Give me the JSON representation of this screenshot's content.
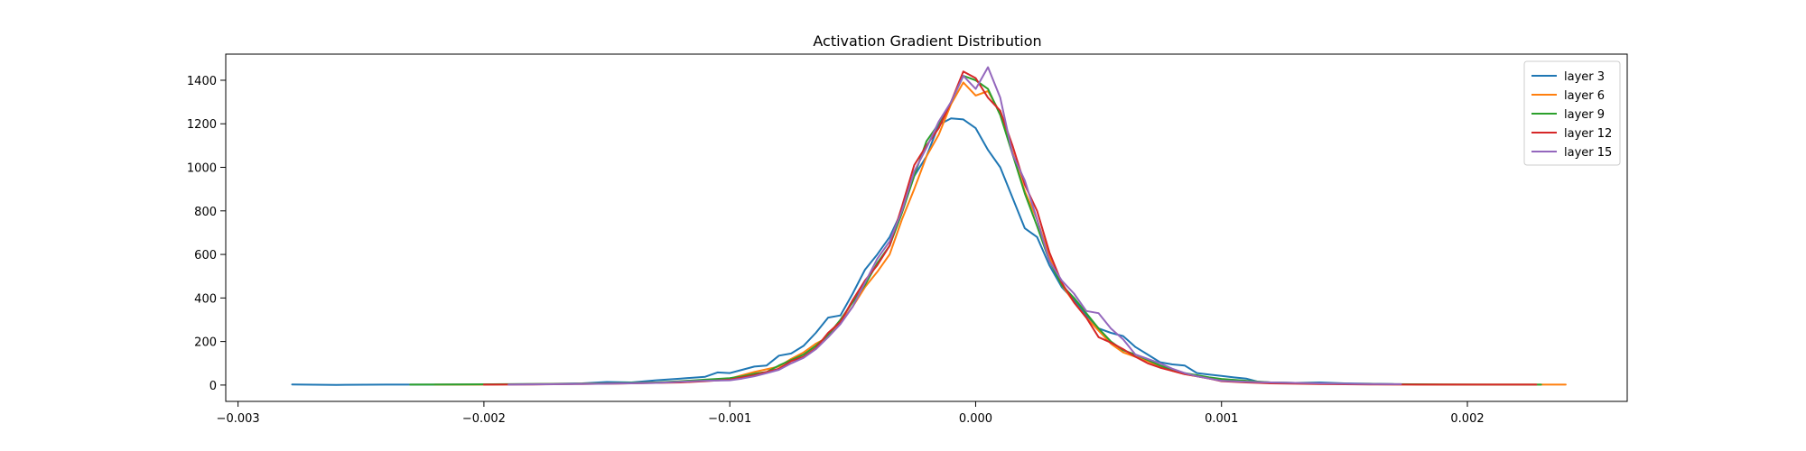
{
  "chart_data": {
    "type": "line",
    "title": "Activation Gradient Distribution",
    "xlabel": "",
    "ylabel": "",
    "xlim": [
      -0.00305,
      0.00265
    ],
    "ylim": [
      -75,
      1520
    ],
    "xticks": [
      -0.003,
      -0.002,
      -0.001,
      0.0,
      0.001,
      0.002
    ],
    "xtick_labels": [
      "−0.003",
      "−0.002",
      "−0.001",
      "0.000",
      "0.001",
      "0.002"
    ],
    "yticks": [
      0,
      200,
      400,
      600,
      800,
      1000,
      1200,
      1400
    ],
    "ytick_labels": [
      "0",
      "200",
      "400",
      "600",
      "800",
      "1000",
      "1200",
      "1400"
    ],
    "grid": false,
    "legend_position": "top-right",
    "series": [
      {
        "name": "layer 3",
        "color": "#1f77b4",
        "points": [
          [
            -0.00278,
            3
          ],
          [
            -0.0026,
            1
          ],
          [
            -0.0024,
            2
          ],
          [
            -0.0022,
            2
          ],
          [
            -0.002,
            3
          ],
          [
            -0.0018,
            5
          ],
          [
            -0.0016,
            8
          ],
          [
            -0.0015,
            14
          ],
          [
            -0.0014,
            12
          ],
          [
            -0.0013,
            22
          ],
          [
            -0.0012,
            30
          ],
          [
            -0.0011,
            38
          ],
          [
            -0.00105,
            58
          ],
          [
            -0.001,
            55
          ],
          [
            -0.00095,
            70
          ],
          [
            -0.0009,
            85
          ],
          [
            -0.00085,
            90
          ],
          [
            -0.0008,
            135
          ],
          [
            -0.00075,
            145
          ],
          [
            -0.0007,
            180
          ],
          [
            -0.00065,
            240
          ],
          [
            -0.0006,
            310
          ],
          [
            -0.00055,
            320
          ],
          [
            -0.0005,
            420
          ],
          [
            -0.00045,
            530
          ],
          [
            -0.0004,
            600
          ],
          [
            -0.00035,
            680
          ],
          [
            -0.0003,
            800
          ],
          [
            -0.00025,
            960
          ],
          [
            -0.0002,
            1050
          ],
          [
            -0.00015,
            1195
          ],
          [
            -0.0001,
            1225
          ],
          [
            -5e-05,
            1220
          ],
          [
            0.0,
            1180
          ],
          [
            5e-05,
            1080
          ],
          [
            0.0001,
            1000
          ],
          [
            0.00015,
            860
          ],
          [
            0.0002,
            720
          ],
          [
            0.00025,
            680
          ],
          [
            0.0003,
            550
          ],
          [
            0.00035,
            450
          ],
          [
            0.0004,
            390
          ],
          [
            0.00045,
            320
          ],
          [
            0.0005,
            260
          ],
          [
            0.00055,
            240
          ],
          [
            0.0006,
            225
          ],
          [
            0.00065,
            175
          ],
          [
            0.0007,
            140
          ],
          [
            0.00075,
            105
          ],
          [
            0.0008,
            95
          ],
          [
            0.00085,
            90
          ],
          [
            0.0009,
            55
          ],
          [
            0.00095,
            48
          ],
          [
            0.001,
            42
          ],
          [
            0.00105,
            35
          ],
          [
            0.0011,
            30
          ],
          [
            0.00115,
            15
          ],
          [
            0.0012,
            12
          ],
          [
            0.0013,
            10
          ],
          [
            0.0014,
            12
          ],
          [
            0.0015,
            8
          ],
          [
            0.0016,
            6
          ],
          [
            0.0017,
            4
          ]
        ]
      },
      {
        "name": "layer 6",
        "color": "#ff7f0e",
        "points": [
          [
            -0.0022,
            2
          ],
          [
            -0.002,
            2
          ],
          [
            -0.0018,
            4
          ],
          [
            -0.0016,
            6
          ],
          [
            -0.0014,
            8
          ],
          [
            -0.0012,
            15
          ],
          [
            -0.0011,
            22
          ],
          [
            -0.001,
            30
          ],
          [
            -0.00095,
            45
          ],
          [
            -0.0009,
            60
          ],
          [
            -0.0008,
            85
          ],
          [
            -0.00075,
            120
          ],
          [
            -0.0007,
            150
          ],
          [
            -0.00065,
            190
          ],
          [
            -0.0006,
            220
          ],
          [
            -0.00055,
            290
          ],
          [
            -0.0005,
            360
          ],
          [
            -0.00045,
            450
          ],
          [
            -0.0004,
            520
          ],
          [
            -0.00035,
            600
          ],
          [
            -0.0003,
            760
          ],
          [
            -0.00025,
            900
          ],
          [
            -0.0002,
            1050
          ],
          [
            -0.00015,
            1150
          ],
          [
            -0.0001,
            1290
          ],
          [
            -5e-05,
            1390
          ],
          [
            0.0,
            1330
          ],
          [
            5e-05,
            1350
          ],
          [
            0.0001,
            1250
          ],
          [
            0.00015,
            1070
          ],
          [
            0.0002,
            890
          ],
          [
            0.00025,
            760
          ],
          [
            0.0003,
            590
          ],
          [
            0.00035,
            460
          ],
          [
            0.0004,
            380
          ],
          [
            0.00045,
            310
          ],
          [
            0.0005,
            250
          ],
          [
            0.00055,
            190
          ],
          [
            0.0006,
            150
          ],
          [
            0.00065,
            130
          ],
          [
            0.0007,
            110
          ],
          [
            0.00075,
            85
          ],
          [
            0.0008,
            65
          ],
          [
            0.00085,
            50
          ],
          [
            0.0009,
            40
          ],
          [
            0.00095,
            30
          ],
          [
            0.001,
            25
          ],
          [
            0.0011,
            15
          ],
          [
            0.0012,
            10
          ],
          [
            0.0014,
            6
          ],
          [
            0.0016,
            4
          ],
          [
            0.0018,
            3
          ],
          [
            0.002,
            2
          ],
          [
            0.0022,
            2
          ],
          [
            0.0024,
            2
          ]
        ]
      },
      {
        "name": "layer 9",
        "color": "#2ca02c",
        "points": [
          [
            -0.0023,
            2
          ],
          [
            -0.0021,
            3
          ],
          [
            -0.0019,
            4
          ],
          [
            -0.0017,
            5
          ],
          [
            -0.0015,
            8
          ],
          [
            -0.0013,
            12
          ],
          [
            -0.0012,
            18
          ],
          [
            -0.0011,
            25
          ],
          [
            -0.001,
            32
          ],
          [
            -0.00095,
            40
          ],
          [
            -0.0009,
            52
          ],
          [
            -0.00085,
            60
          ],
          [
            -0.0008,
            90
          ],
          [
            -0.00075,
            115
          ],
          [
            -0.0007,
            140
          ],
          [
            -0.00065,
            180
          ],
          [
            -0.0006,
            230
          ],
          [
            -0.00055,
            300
          ],
          [
            -0.0005,
            380
          ],
          [
            -0.00045,
            460
          ],
          [
            -0.0004,
            560
          ],
          [
            -0.00035,
            640
          ],
          [
            -0.0003,
            790
          ],
          [
            -0.00025,
            960
          ],
          [
            -0.0002,
            1120
          ],
          [
            -0.00015,
            1200
          ],
          [
            -0.0001,
            1300
          ],
          [
            -5e-05,
            1420
          ],
          [
            0.0,
            1400
          ],
          [
            5e-05,
            1360
          ],
          [
            0.0001,
            1240
          ],
          [
            0.00015,
            1060
          ],
          [
            0.0002,
            880
          ],
          [
            0.00025,
            730
          ],
          [
            0.0003,
            570
          ],
          [
            0.00035,
            460
          ],
          [
            0.0004,
            400
          ],
          [
            0.00045,
            330
          ],
          [
            0.0005,
            260
          ],
          [
            0.00055,
            200
          ],
          [
            0.0006,
            160
          ],
          [
            0.00065,
            140
          ],
          [
            0.0007,
            115
          ],
          [
            0.00075,
            90
          ],
          [
            0.0008,
            70
          ],
          [
            0.00085,
            55
          ],
          [
            0.0009,
            45
          ],
          [
            0.00095,
            35
          ],
          [
            0.001,
            28
          ],
          [
            0.0011,
            20
          ],
          [
            0.0012,
            12
          ],
          [
            0.0013,
            10
          ],
          [
            0.0015,
            6
          ],
          [
            0.0017,
            4
          ],
          [
            0.0019,
            3
          ],
          [
            0.0021,
            2
          ],
          [
            0.0023,
            2
          ]
        ]
      },
      {
        "name": "layer 12",
        "color": "#d62728",
        "points": [
          [
            -0.002,
            2
          ],
          [
            -0.0018,
            3
          ],
          [
            -0.0016,
            5
          ],
          [
            -0.0014,
            8
          ],
          [
            -0.0012,
            12
          ],
          [
            -0.0011,
            18
          ],
          [
            -0.001,
            25
          ],
          [
            -0.00095,
            35
          ],
          [
            -0.0009,
            45
          ],
          [
            -0.00085,
            60
          ],
          [
            -0.0008,
            75
          ],
          [
            -0.00075,
            110
          ],
          [
            -0.0007,
            130
          ],
          [
            -0.00065,
            170
          ],
          [
            -0.0006,
            240
          ],
          [
            -0.00055,
            290
          ],
          [
            -0.0005,
            390
          ],
          [
            -0.00045,
            480
          ],
          [
            -0.0004,
            550
          ],
          [
            -0.00035,
            640
          ],
          [
            -0.0003,
            820
          ],
          [
            -0.00025,
            1010
          ],
          [
            -0.0002,
            1100
          ],
          [
            -0.00015,
            1180
          ],
          [
            -0.0001,
            1300
          ],
          [
            -5e-05,
            1440
          ],
          [
            0.0,
            1410
          ],
          [
            5e-05,
            1320
          ],
          [
            0.0001,
            1260
          ],
          [
            0.00015,
            1100
          ],
          [
            0.0002,
            920
          ],
          [
            0.00025,
            800
          ],
          [
            0.0003,
            610
          ],
          [
            0.00035,
            470
          ],
          [
            0.0004,
            380
          ],
          [
            0.00045,
            310
          ],
          [
            0.0005,
            220
          ],
          [
            0.00055,
            195
          ],
          [
            0.0006,
            165
          ],
          [
            0.00065,
            130
          ],
          [
            0.0007,
            100
          ],
          [
            0.00075,
            80
          ],
          [
            0.0008,
            65
          ],
          [
            0.00085,
            50
          ],
          [
            0.0009,
            40
          ],
          [
            0.00095,
            30
          ],
          [
            0.001,
            18
          ],
          [
            0.0011,
            12
          ],
          [
            0.0012,
            8
          ],
          [
            0.0014,
            5
          ],
          [
            0.0016,
            3
          ],
          [
            0.0018,
            2
          ],
          [
            0.002,
            2
          ],
          [
            0.0022,
            2
          ],
          [
            0.00228,
            2
          ]
        ]
      },
      {
        "name": "layer 15",
        "color": "#9467bd",
        "points": [
          [
            -0.0019,
            2
          ],
          [
            -0.0017,
            4
          ],
          [
            -0.0015,
            6
          ],
          [
            -0.0013,
            10
          ],
          [
            -0.0012,
            15
          ],
          [
            -0.0011,
            20
          ],
          [
            -0.001,
            22
          ],
          [
            -0.00095,
            30
          ],
          [
            -0.0009,
            40
          ],
          [
            -0.00085,
            55
          ],
          [
            -0.0008,
            70
          ],
          [
            -0.00075,
            100
          ],
          [
            -0.0007,
            125
          ],
          [
            -0.00065,
            165
          ],
          [
            -0.0006,
            220
          ],
          [
            -0.00055,
            280
          ],
          [
            -0.0005,
            360
          ],
          [
            -0.00045,
            470
          ],
          [
            -0.0004,
            580
          ],
          [
            -0.00035,
            660
          ],
          [
            -0.0003,
            800
          ],
          [
            -0.00025,
            980
          ],
          [
            -0.0002,
            1090
          ],
          [
            -0.00015,
            1210
          ],
          [
            -0.0001,
            1300
          ],
          [
            -5e-05,
            1420
          ],
          [
            0.0,
            1360
          ],
          [
            5e-05,
            1460
          ],
          [
            0.0001,
            1320
          ],
          [
            0.00015,
            1060
          ],
          [
            0.0002,
            940
          ],
          [
            0.00025,
            760
          ],
          [
            0.0003,
            570
          ],
          [
            0.00035,
            480
          ],
          [
            0.0004,
            420
          ],
          [
            0.00045,
            340
          ],
          [
            0.0005,
            330
          ],
          [
            0.00055,
            260
          ],
          [
            0.0006,
            210
          ],
          [
            0.00065,
            140
          ],
          [
            0.0007,
            120
          ],
          [
            0.00075,
            100
          ],
          [
            0.0008,
            75
          ],
          [
            0.00085,
            55
          ],
          [
            0.0009,
            40
          ],
          [
            0.00095,
            30
          ],
          [
            0.001,
            20
          ],
          [
            0.0011,
            15
          ],
          [
            0.0012,
            12
          ],
          [
            0.0013,
            10
          ],
          [
            0.0014,
            8
          ],
          [
            0.0015,
            6
          ],
          [
            0.0016,
            5
          ],
          [
            0.0017,
            4
          ],
          [
            0.00173,
            4
          ]
        ]
      }
    ]
  }
}
